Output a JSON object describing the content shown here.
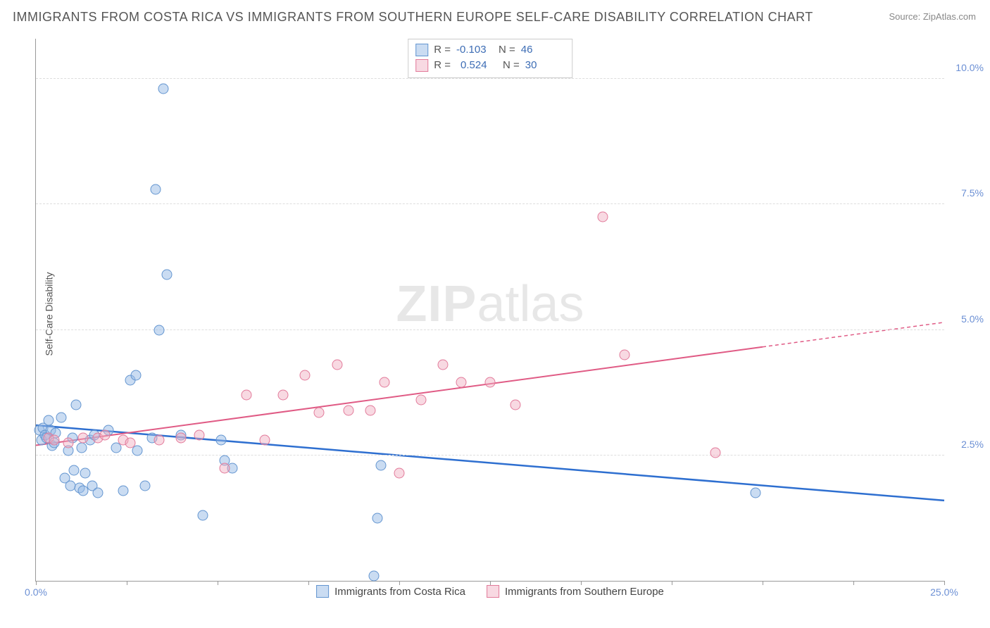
{
  "title": "IMMIGRANTS FROM COSTA RICA VS IMMIGRANTS FROM SOUTHERN EUROPE SELF-CARE DISABILITY CORRELATION CHART",
  "source_prefix": "Source: ",
  "source_name": "ZipAtlas.com",
  "ylabel": "Self-Care Disability",
  "watermark_zip": "ZIP",
  "watermark_atlas": "atlas",
  "chart": {
    "type": "scatter",
    "xlim": [
      0,
      25
    ],
    "ylim": [
      0,
      10.8
    ],
    "x_ticks": [
      0,
      2.5,
      5,
      7.5,
      10,
      12.5,
      15,
      17.5,
      20,
      22.5,
      25
    ],
    "x_tick_labels": {
      "0": "0.0%",
      "25": "25.0%"
    },
    "y_gridlines": [
      2.5,
      5.0,
      7.5,
      10.0
    ],
    "y_tick_labels": [
      "2.5%",
      "5.0%",
      "7.5%",
      "10.0%"
    ],
    "background_color": "#ffffff",
    "grid_color": "#dddddd",
    "axis_color": "#999999",
    "tick_label_color": "#6b8fd4",
    "marker_radius": 7.5,
    "series": [
      {
        "name": "Immigrants from Costa Rica",
        "fill_color": "rgba(150,185,230,0.5)",
        "stroke_color": "#6395d0",
        "line_color": "#2e6fd0",
        "R": "-0.103",
        "N": "46",
        "trend": {
          "x1": 0,
          "y1": 3.1,
          "x2": 25,
          "y2": 1.6,
          "dash_after_x": null
        },
        "points": [
          [
            0.1,
            3.0
          ],
          [
            0.15,
            2.8
          ],
          [
            0.2,
            3.05
          ],
          [
            0.25,
            2.9
          ],
          [
            0.3,
            2.85
          ],
          [
            0.35,
            3.2
          ],
          [
            0.4,
            3.0
          ],
          [
            0.45,
            2.7
          ],
          [
            0.5,
            2.75
          ],
          [
            0.55,
            2.95
          ],
          [
            0.7,
            3.25
          ],
          [
            0.8,
            2.05
          ],
          [
            0.9,
            2.6
          ],
          [
            0.95,
            1.9
          ],
          [
            1.0,
            2.85
          ],
          [
            1.05,
            2.2
          ],
          [
            1.1,
            3.5
          ],
          [
            1.2,
            1.85
          ],
          [
            1.25,
            2.65
          ],
          [
            1.3,
            1.8
          ],
          [
            1.35,
            2.15
          ],
          [
            1.5,
            2.8
          ],
          [
            1.55,
            1.9
          ],
          [
            1.6,
            2.9
          ],
          [
            1.7,
            1.75
          ],
          [
            2.0,
            3.0
          ],
          [
            2.2,
            2.65
          ],
          [
            2.4,
            1.8
          ],
          [
            2.6,
            4.0
          ],
          [
            2.75,
            4.1
          ],
          [
            2.8,
            2.6
          ],
          [
            3.0,
            1.9
          ],
          [
            3.2,
            2.85
          ],
          [
            3.3,
            7.8
          ],
          [
            3.4,
            5.0
          ],
          [
            3.5,
            9.8
          ],
          [
            3.6,
            6.1
          ],
          [
            4.0,
            2.9
          ],
          [
            4.6,
            1.3
          ],
          [
            5.1,
            2.8
          ],
          [
            5.2,
            2.4
          ],
          [
            5.4,
            2.25
          ],
          [
            9.3,
            0.1
          ],
          [
            9.4,
            1.25
          ],
          [
            9.5,
            2.3
          ],
          [
            19.8,
            1.75
          ]
        ]
      },
      {
        "name": "Immigrants from Southern Europe",
        "fill_color": "rgba(240,170,190,0.45)",
        "stroke_color": "#e27a9a",
        "line_color": "#e05b85",
        "R": "0.524",
        "N": "30",
        "trend": {
          "x1": 0,
          "y1": 2.7,
          "x2": 25,
          "y2": 5.15,
          "dash_after_x": 20
        },
        "points": [
          [
            0.35,
            2.85
          ],
          [
            0.5,
            2.8
          ],
          [
            0.9,
            2.75
          ],
          [
            1.3,
            2.85
          ],
          [
            1.7,
            2.85
          ],
          [
            1.9,
            2.9
          ],
          [
            2.4,
            2.8
          ],
          [
            2.6,
            2.75
          ],
          [
            3.4,
            2.8
          ],
          [
            4.0,
            2.85
          ],
          [
            4.5,
            2.9
          ],
          [
            5.2,
            2.25
          ],
          [
            5.8,
            3.7
          ],
          [
            6.3,
            2.8
          ],
          [
            6.8,
            3.7
          ],
          [
            7.4,
            4.1
          ],
          [
            7.8,
            3.35
          ],
          [
            8.3,
            4.3
          ],
          [
            8.6,
            3.4
          ],
          [
            9.2,
            3.4
          ],
          [
            9.6,
            3.95
          ],
          [
            10.0,
            2.15
          ],
          [
            10.6,
            3.6
          ],
          [
            11.2,
            4.3
          ],
          [
            11.7,
            3.95
          ],
          [
            12.5,
            3.95
          ],
          [
            13.2,
            3.5
          ],
          [
            15.6,
            7.25
          ],
          [
            16.2,
            4.5
          ],
          [
            18.7,
            2.55
          ]
        ]
      }
    ]
  },
  "legend_stats": {
    "label_R": "R =",
    "label_N": "N ="
  }
}
